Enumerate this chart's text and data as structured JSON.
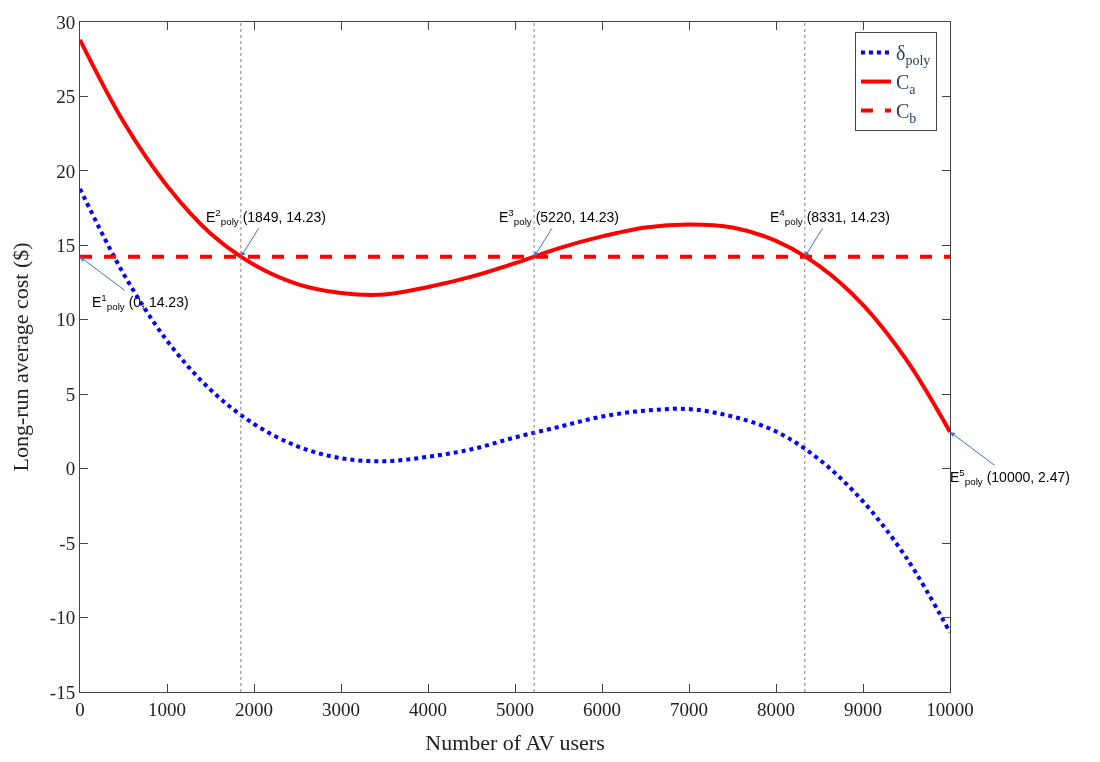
{
  "chart_data": {
    "type": "line",
    "xlabel": "Number of AV users",
    "ylabel": "Long-run average cost ($)",
    "x": [
      0,
      500,
      1000,
      1500,
      2000,
      2500,
      3000,
      3500,
      4000,
      4500,
      5000,
      5500,
      6000,
      6500,
      7000,
      7500,
      8000,
      8500,
      9000,
      9500,
      10000
    ],
    "series": [
      {
        "name": "δ$_{poly}$",
        "color": "#0000ff",
        "line_style": "dotted",
        "values": [
          18.8,
          13.1,
          8.6,
          5.3,
          3.0,
          1.5,
          0.7,
          0.5,
          0.8,
          1.3,
          2.1,
          2.8,
          3.5,
          3.9,
          4.0,
          3.5,
          2.5,
          0.6,
          -2.2,
          -6.0,
          -11.0
        ]
      },
      {
        "name": "C$_{a}$",
        "color": "#ff0000",
        "line_style": "solid",
        "values": [
          28.8,
          23.3,
          19.0,
          15.8,
          13.7,
          12.4,
          11.8,
          11.7,
          12.2,
          12.9,
          13.8,
          14.8,
          15.6,
          16.2,
          16.4,
          16.2,
          15.3,
          13.6,
          11.0,
          7.3,
          2.47
        ]
      },
      {
        "name": "C$_{b}$",
        "color": "#ff0000",
        "line_style": "dashed",
        "x": [
          0,
          10000
        ],
        "values": [
          14.23,
          14.23
        ]
      }
    ],
    "ref_lines": [
      {
        "axis": "x",
        "value": 1849,
        "color": "#808080",
        "line_style": "dotted"
      },
      {
        "axis": "x",
        "value": 5220,
        "color": "#808080",
        "line_style": "dotted"
      },
      {
        "axis": "x",
        "value": 8331,
        "color": "#808080",
        "line_style": "dotted"
      }
    ],
    "annotations": [
      {
        "text": "E$^{1}$$_{poly}$ (0, 14.23)",
        "x": 0,
        "y": 14.23
      },
      {
        "text": "E$^{2}$$_{poly}$ (1849, 14.23)",
        "x": 1849,
        "y": 14.23
      },
      {
        "text": "E$^{3}$$_{poly}$ (5220, 14.23)",
        "x": 5220,
        "y": 14.23
      },
      {
        "text": "E$^{4}$$_{poly}$ (8331, 14.23)",
        "x": 8331,
        "y": 14.23
      },
      {
        "text": "E$^{5}$$_{poly}$ (10000, 2.47)",
        "x": 10000,
        "y": 2.47
      }
    ],
    "xlim": [
      0,
      10000
    ],
    "xticks": [
      0,
      1000,
      2000,
      3000,
      4000,
      5000,
      6000,
      7000,
      8000,
      9000,
      10000
    ],
    "ylim": [
      -15,
      30
    ],
    "yticks": [
      -15,
      -10,
      -5,
      0,
      5,
      10,
      15,
      20,
      25,
      30
    ],
    "legend": "top right"
  }
}
